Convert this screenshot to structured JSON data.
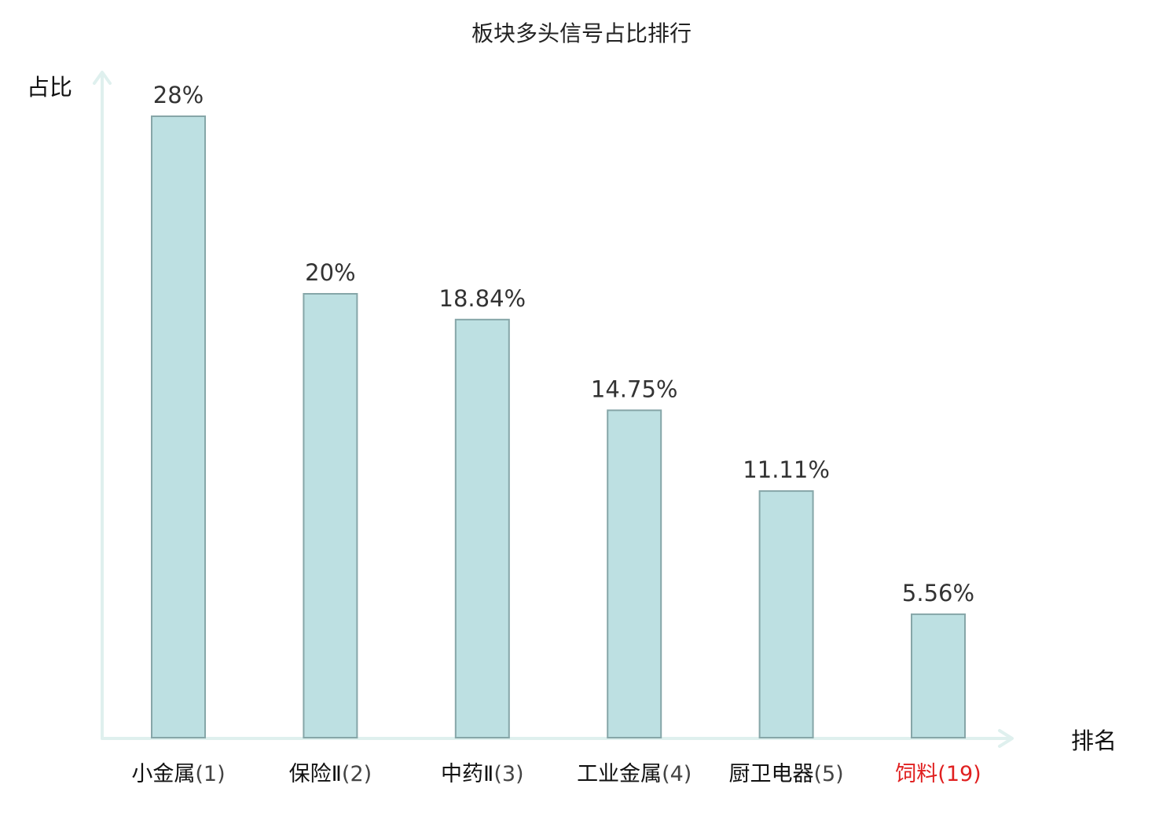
{
  "chart_data": {
    "type": "bar",
    "title": "板块多头信号占比排行",
    "ylabel": "占比",
    "xlabel": "排名",
    "categories": [
      {
        "name": "小金属",
        "rank": "(1)"
      },
      {
        "name": "保险Ⅱ",
        "rank": "(2)"
      },
      {
        "name": "中药Ⅱ",
        "rank": "(3)"
      },
      {
        "name": "工业金属",
        "rank": "(4)"
      },
      {
        "name": "厨卫电器",
        "rank": "(5)"
      },
      {
        "name": "饲料",
        "rank": "(19)"
      }
    ],
    "values": [
      28,
      20,
      18.84,
      14.75,
      11.11,
      5.56
    ],
    "value_labels": [
      "28%",
      "20%",
      "18.84%",
      "14.75%",
      "11.11%",
      "5.56%"
    ],
    "highlight_index": 5,
    "ylim": [
      0,
      30
    ],
    "grid": false,
    "colors": {
      "bar_fill": "#bde0e2",
      "bar_stroke": "#86a6a8",
      "axis": "#dff0ee",
      "text": "#111111",
      "value_text": "#333333",
      "rank_text": "#444444",
      "highlight": "#e02020"
    }
  }
}
